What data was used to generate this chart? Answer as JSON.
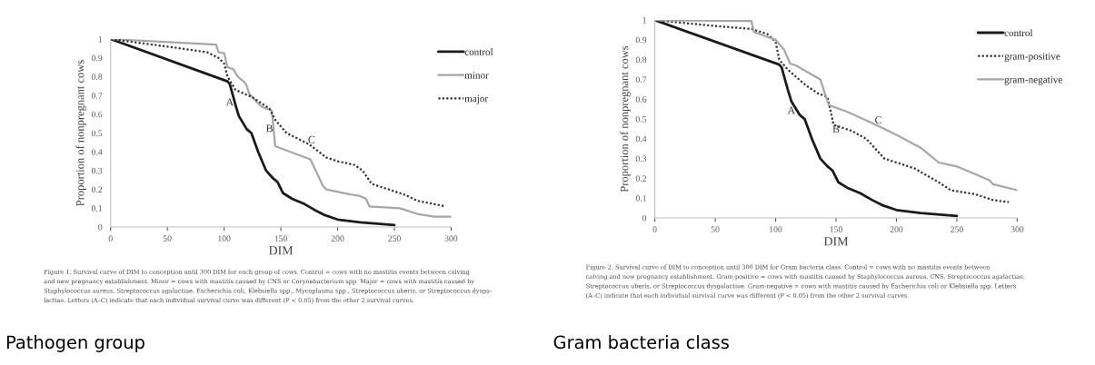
{
  "chart_data": [
    {
      "type": "line",
      "title": "Pathogen group",
      "xlabel": "DIM",
      "ylabel": "Proportion of nonpregnant cows",
      "xlim": [
        0,
        300
      ],
      "xticks": [
        0,
        50,
        100,
        150,
        200,
        250,
        300
      ],
      "ylim": [
        0,
        1
      ],
      "yticks": [
        0,
        0.1,
        0.2,
        0.3,
        0.4,
        0.5,
        0.6,
        0.7,
        0.8,
        0.9,
        1
      ],
      "legend": "top right",
      "grid": false,
      "series": [
        {
          "name": "control",
          "color": "#1a1a1a",
          "line_style": "solid",
          "x": [
            0,
            103,
            105,
            110,
            113,
            120,
            124,
            130,
            137,
            143,
            147,
            152,
            160,
            170,
            180,
            188,
            200,
            220,
            250
          ],
          "values": [
            1,
            0.775,
            0.76,
            0.65,
            0.59,
            0.52,
            0.5,
            0.4,
            0.3,
            0.26,
            0.24,
            0.18,
            0.15,
            0.125,
            0.09,
            0.065,
            0.04,
            0.025,
            0.01
          ]
        },
        {
          "name": "minor",
          "color": "#a6a6a6",
          "line_style": "solid",
          "x": [
            0,
            93,
            95,
            100,
            103,
            108,
            112,
            118,
            120,
            122,
            128,
            133,
            142,
            145,
            176,
            187,
            190,
            210,
            220,
            225,
            228,
            255,
            270,
            285,
            300
          ],
          "values": [
            1,
            0.97,
            0.93,
            0.925,
            0.85,
            0.84,
            0.8,
            0.77,
            0.75,
            0.71,
            0.67,
            0.64,
            0.62,
            0.43,
            0.36,
            0.22,
            0.2,
            0.175,
            0.165,
            0.15,
            0.11,
            0.1,
            0.07,
            0.055,
            0.055
          ]
        },
        {
          "name": "major",
          "color": "#333333",
          "line_style": "dotted",
          "x": [
            0,
            50,
            85,
            95,
            100,
            103,
            110,
            125,
            140,
            145,
            155,
            175,
            190,
            200,
            215,
            222,
            230,
            250,
            260,
            270,
            295
          ],
          "values": [
            1,
            0.96,
            0.93,
            0.9,
            0.87,
            0.8,
            0.73,
            0.69,
            0.63,
            0.57,
            0.5,
            0.44,
            0.37,
            0.35,
            0.33,
            0.3,
            0.23,
            0.19,
            0.17,
            0.14,
            0.11
          ]
        }
      ],
      "annotations": [
        {
          "text": "A",
          "x": 105,
          "y": 0.66
        },
        {
          "text": "B",
          "x": 140,
          "y": 0.52
        },
        {
          "text": "C",
          "x": 177,
          "y": 0.46
        },
        "Figure 1. Survival curve of DIM to conception until 300 DIM for each group of cows. Control = cows with no mastitis events between calving",
        "and new pregnancy establishment. Minor = cows with mastitis caused by CNS or Corynebacterium spp. Major = cows with mastitis caused by",
        "Staphylococcus aureus, Streptococcus agalactiae, Escherichia coli, Klebsiella spp., Mycoplasma spp., Streptococcus uberis, or Streptococcus dysga-",
        "lactiae. Letters (A–C) indicate that each individual survival curve was different (P < 0.05) from the other 2 survival curves."
      ]
    },
    {
      "type": "line",
      "title": "Gram bacteria class",
      "xlabel": "DIM",
      "ylabel": "Proportion of nonpregnant cows",
      "xlim": [
        0,
        300
      ],
      "xticks": [
        0,
        50,
        100,
        150,
        200,
        250,
        300
      ],
      "ylim": [
        0,
        1
      ],
      "yticks": [
        0,
        0.1,
        0.2,
        0.3,
        0.4,
        0.5,
        0.6,
        0.7,
        0.8,
        0.9,
        1
      ],
      "legend": "top right",
      "grid": false,
      "series": [
        {
          "name": "control",
          "color": "#1a1a1a",
          "line_style": "solid",
          "x": [
            0,
            103,
            105,
            110,
            113,
            120,
            124,
            130,
            137,
            143,
            147,
            152,
            160,
            170,
            180,
            188,
            200,
            220,
            250
          ],
          "values": [
            1,
            0.775,
            0.76,
            0.65,
            0.59,
            0.52,
            0.5,
            0.4,
            0.3,
            0.26,
            0.24,
            0.18,
            0.15,
            0.125,
            0.09,
            0.065,
            0.04,
            0.025,
            0.01
          ]
        },
        {
          "name": "gram-positive",
          "color": "#333333",
          "line_style": "dotted",
          "x": [
            0,
            50,
            80,
            93,
            100,
            103,
            110,
            125,
            135,
            143,
            148,
            163,
            175,
            190,
            200,
            215,
            235,
            245,
            265,
            280,
            293
          ],
          "values": [
            1,
            0.97,
            0.955,
            0.93,
            0.89,
            0.8,
            0.75,
            0.67,
            0.63,
            0.61,
            0.47,
            0.44,
            0.4,
            0.3,
            0.28,
            0.25,
            0.18,
            0.14,
            0.12,
            0.09,
            0.08
          ]
        },
        {
          "name": "gram-negative",
          "color": "#a6a6a6",
          "line_style": "solid",
          "x": [
            0,
            80,
            82,
            100,
            107,
            112,
            117,
            137,
            144,
            160,
            183,
            200,
            220,
            235,
            250,
            277,
            280,
            300
          ],
          "values": [
            1,
            0.995,
            0.94,
            0.9,
            0.85,
            0.78,
            0.77,
            0.7,
            0.57,
            0.535,
            0.47,
            0.42,
            0.355,
            0.28,
            0.26,
            0.19,
            0.17,
            0.14
          ]
        }
      ],
      "annotations": [
        {
          "text": "A",
          "x": 113,
          "y": 0.54
        },
        {
          "text": "B",
          "x": 150,
          "y": 0.445
        },
        {
          "text": "C",
          "x": 185,
          "y": 0.49
        },
        "Figure 2. Survival curve of DIM to conception until 300 DIM for Gram bacteria class. Control = cows with no mastitis events between",
        "calving and new pregnancy establishment. Gram-positive = cows with mastitis caused by Staphylococcus aureus, CNS, Streptococcus agalactiae,",
        "Streptococcus uberis, or Streptococcus dysgalactiae. Gram-negative = cows with mastitis caused by Escherichia coli or Klebsiella spp. Letters",
        "(A–C) indicate that each individual survival curve was different (P < 0.05) from the other 2 survival curves."
      ]
    }
  ]
}
